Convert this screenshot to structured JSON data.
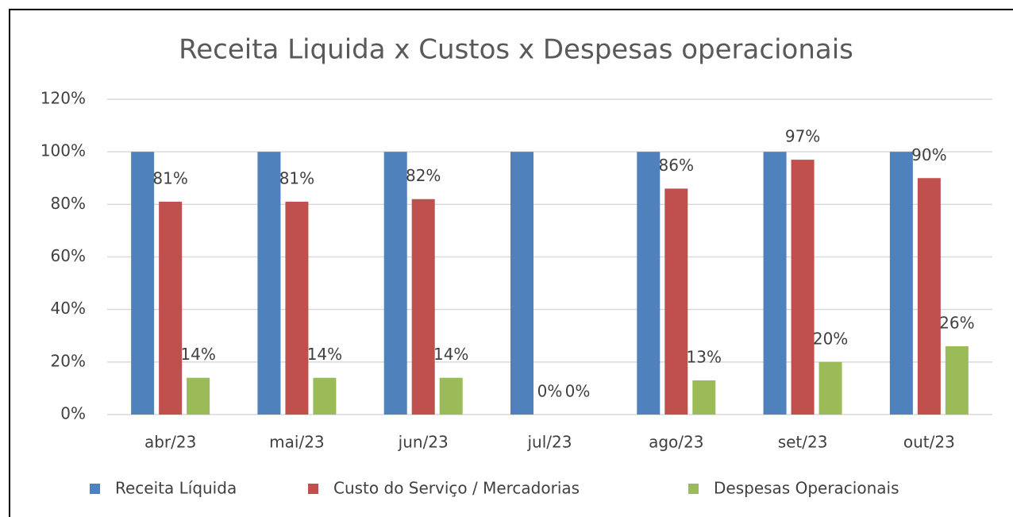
{
  "chart_data": {
    "type": "bar",
    "title": "Receita Liquida x Custos x Despesas operacionais",
    "categories": [
      "abr/23",
      "mai/23",
      "jun/23",
      "jul/23",
      "ago/23",
      "set/23",
      "out/23"
    ],
    "series": [
      {
        "name": "Receita Líquida",
        "color": "#4f81bd",
        "values": [
          100,
          100,
          100,
          100,
          100,
          100,
          100
        ]
      },
      {
        "name": "Custo do Serviço / Mercadorias",
        "color": "#c0504d",
        "values": [
          81,
          81,
          82,
          0,
          86,
          97,
          90
        ],
        "value_labels": [
          "81%",
          "81%",
          "82%",
          "0%",
          "86%",
          "97%",
          "90%"
        ]
      },
      {
        "name": "Despesas Operacionais",
        "color": "#9bbb59",
        "values": [
          14,
          14,
          14,
          0,
          13,
          20,
          26
        ],
        "value_labels": [
          "14%",
          "14%",
          "14%",
          "0%",
          "13%",
          "20%",
          "26%"
        ]
      }
    ],
    "ylim": [
      0,
      120
    ],
    "yticks": [
      {
        "value": 0,
        "label": "0%"
      },
      {
        "value": 20,
        "label": "20%"
      },
      {
        "value": 40,
        "label": "40%"
      },
      {
        "value": 60,
        "label": "60%"
      },
      {
        "value": 80,
        "label": "80%"
      },
      {
        "value": 100,
        "label": "100%"
      },
      {
        "value": 120,
        "label": "120%"
      }
    ],
    "grid": true,
    "legend": "bottom"
  }
}
